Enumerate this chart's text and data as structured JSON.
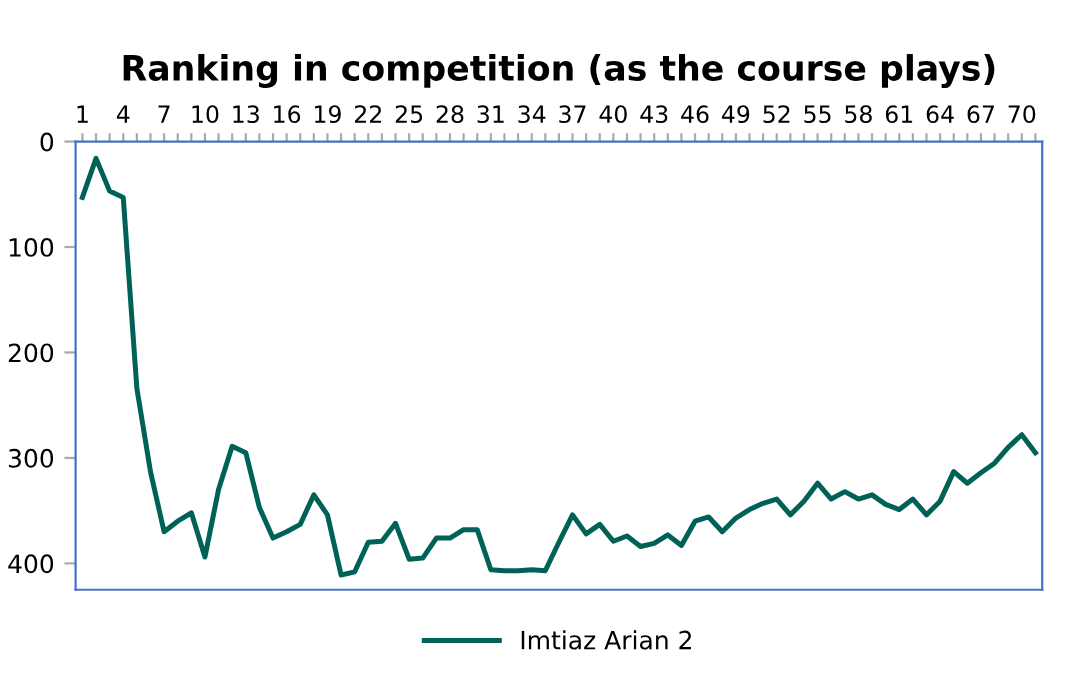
{
  "chart_data": {
    "type": "line",
    "title": "Ranking in competition (as the course plays)",
    "categories": [
      "1",
      null,
      null,
      "4",
      null,
      null,
      "7",
      null,
      null,
      "10",
      null,
      null,
      "13",
      null,
      null,
      "16",
      null,
      null,
      "19",
      null,
      null,
      "22",
      null,
      null,
      "25",
      null,
      null,
      "28",
      null,
      null,
      "31",
      null,
      null,
      "34",
      null,
      null,
      "37",
      null,
      null,
      "40",
      null,
      null,
      "43",
      null,
      null,
      "46",
      null,
      null,
      "49",
      null,
      null,
      "52",
      null,
      null,
      "55",
      null,
      null,
      "58",
      null,
      null,
      "61",
      null,
      null,
      "64",
      null,
      null,
      "67",
      null,
      null,
      "70",
      null
    ],
    "series": [
      {
        "name": "Imtiaz Arian 2",
        "color": "#006156",
        "values": [
          53,
          16,
          47,
          53,
          234,
          313,
          370,
          360,
          352,
          394,
          330,
          289,
          295,
          347,
          376,
          370,
          363,
          335,
          354,
          411,
          408,
          380,
          379,
          362,
          396,
          395,
          376,
          376,
          368,
          368,
          406,
          407,
          407,
          406,
          407,
          380,
          354,
          372,
          363,
          379,
          374,
          384,
          381,
          373,
          383,
          360,
          356,
          370,
          357,
          349,
          343,
          339,
          354,
          341,
          324,
          339,
          332,
          339,
          335,
          344,
          349,
          339,
          354,
          341,
          313,
          324,
          314,
          305,
          290,
          278,
          295
        ]
      }
    ],
    "ylim": [
      425,
      0
    ],
    "yticks": [
      0,
      100,
      200,
      300,
      400
    ],
    "grid": false,
    "legend": "bottom",
    "marker": "none",
    "line_style": "solid"
  }
}
